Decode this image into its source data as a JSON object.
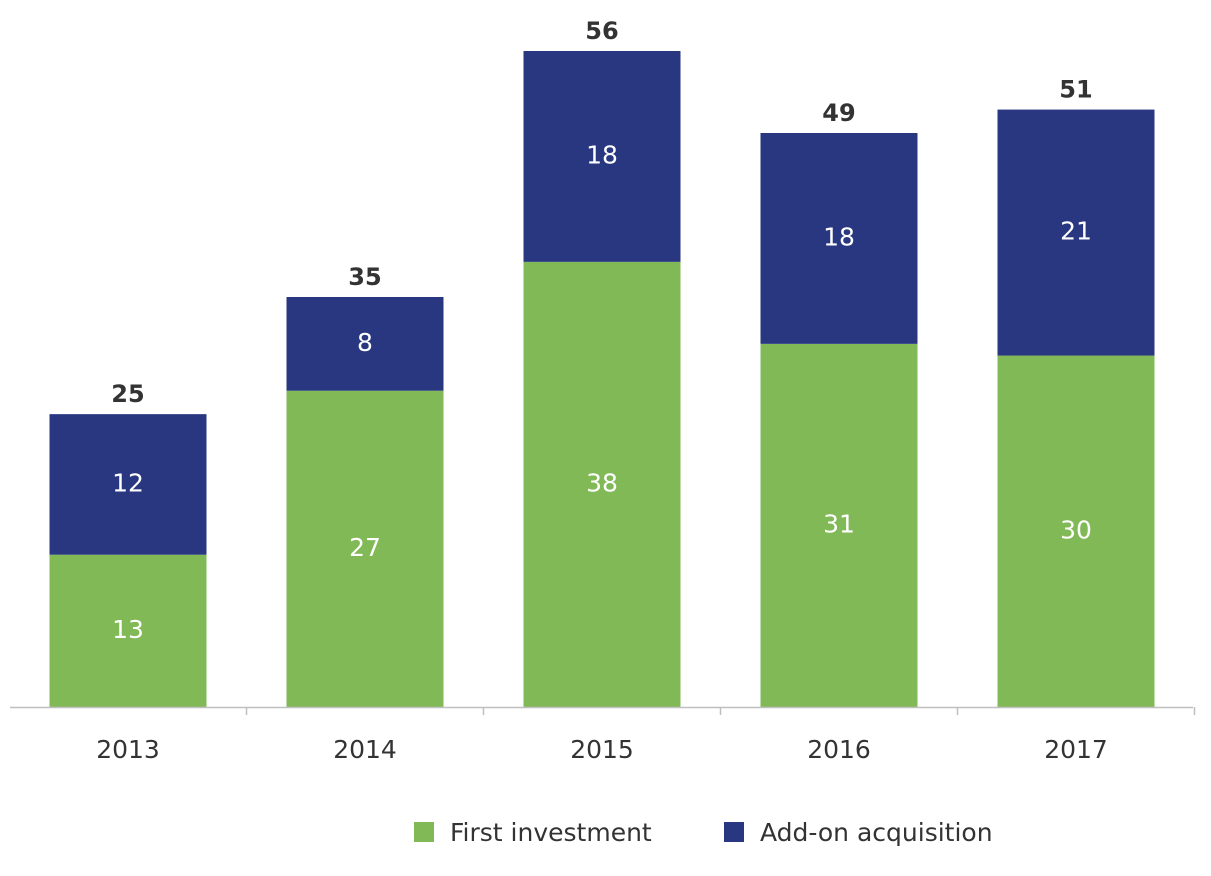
{
  "chart_data": {
    "type": "bar",
    "stacked": true,
    "categories": [
      "2013",
      "2014",
      "2015",
      "2016",
      "2017"
    ],
    "series": [
      {
        "name": "First investment",
        "values": [
          13,
          27,
          38,
          31,
          30
        ],
        "color": "#82b957"
      },
      {
        "name": "Add-on acquisition",
        "values": [
          12,
          8,
          18,
          18,
          21
        ],
        "color": "#283780"
      }
    ],
    "totals": [
      25,
      35,
      56,
      49,
      51
    ],
    "ylim": [
      0,
      56
    ],
    "grid": false,
    "legend": "bottom-center",
    "title": "",
    "xlabel": "",
    "ylabel": "",
    "axis_color": "#bfbfbf",
    "text_color": "#333333"
  }
}
